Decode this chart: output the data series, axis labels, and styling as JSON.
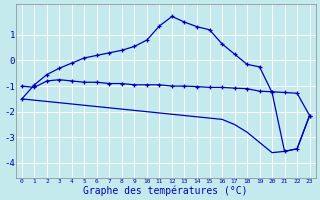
{
  "xlabel": "Graphe des températures (°C)",
  "background_color": "#c5eaee",
  "grid_color": "#ffffff",
  "line_color": "#0000bb",
  "hours": [
    0,
    1,
    2,
    3,
    4,
    5,
    6,
    7,
    8,
    9,
    10,
    11,
    12,
    13,
    14,
    15,
    16,
    17,
    18,
    19,
    20,
    21,
    22,
    23
  ],
  "curve_upper": [
    -1.5,
    -0.95,
    -0.55,
    -0.3,
    -0.1,
    0.1,
    0.2,
    0.3,
    0.4,
    0.55,
    0.8,
    1.35,
    1.72,
    1.5,
    1.32,
    1.2,
    0.65,
    0.25,
    -0.15,
    -0.25,
    -1.25,
    -3.55,
    -3.45,
    -2.15
  ],
  "curve_mid": [
    -1.0,
    -1.05,
    -0.8,
    -0.75,
    -0.8,
    -0.85,
    -0.85,
    -0.9,
    -0.9,
    -0.95,
    -0.95,
    -0.95,
    -1.0,
    -1.0,
    -1.02,
    -1.05,
    -1.05,
    -1.08,
    -1.1,
    -1.2,
    -1.22,
    -1.25,
    -1.28,
    -2.15
  ],
  "curve_lower": [
    -1.5,
    -1.55,
    -1.6,
    -1.65,
    -1.7,
    -1.75,
    -1.8,
    -1.85,
    -1.9,
    -1.95,
    -2.0,
    -2.05,
    -2.1,
    -2.15,
    -2.2,
    -2.25,
    -2.3,
    -2.5,
    -2.8,
    -3.2,
    -3.6,
    -3.55,
    -3.45,
    -2.15
  ],
  "ylim": [
    -4.6,
    2.2
  ],
  "yticks": [
    -4,
    -3,
    -2,
    -1,
    0,
    1
  ],
  "xlim": [
    -0.5,
    23.5
  ],
  "xticks": [
    0,
    1,
    2,
    3,
    4,
    5,
    6,
    7,
    8,
    9,
    10,
    11,
    12,
    13,
    14,
    15,
    16,
    17,
    18,
    19,
    20,
    21,
    22,
    23
  ]
}
